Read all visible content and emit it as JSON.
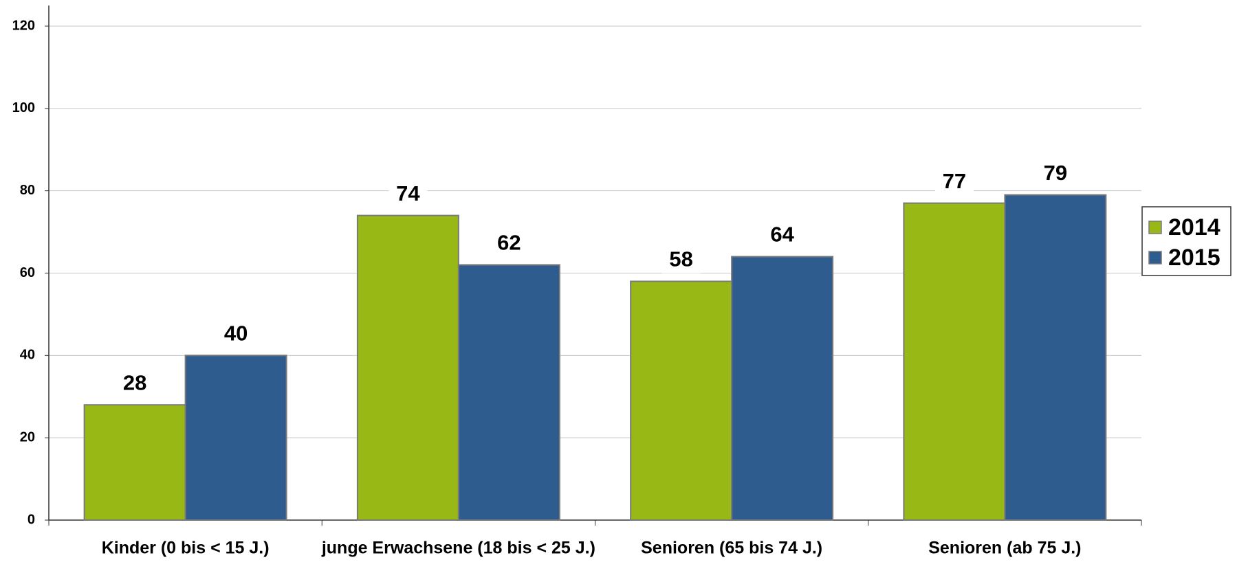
{
  "chart_data": {
    "type": "bar",
    "categories": [
      "Kinder (0 bis < 15 J.)",
      "junge Erwachsene (18 bis < 25 J.)",
      "Senioren (65 bis 74 J.)",
      "Senioren (ab 75 J.)"
    ],
    "series": [
      {
        "name": "2014",
        "color": "#97b815",
        "values": [
          28,
          74,
          58,
          77
        ]
      },
      {
        "name": "2015",
        "color": "#2e5c8f",
        "values": [
          40,
          62,
          64,
          79
        ]
      }
    ],
    "ylim": [
      0,
      120
    ],
    "yticks": [
      0,
      20,
      40,
      60,
      80,
      100,
      120
    ],
    "grid": true,
    "legend": "right"
  }
}
